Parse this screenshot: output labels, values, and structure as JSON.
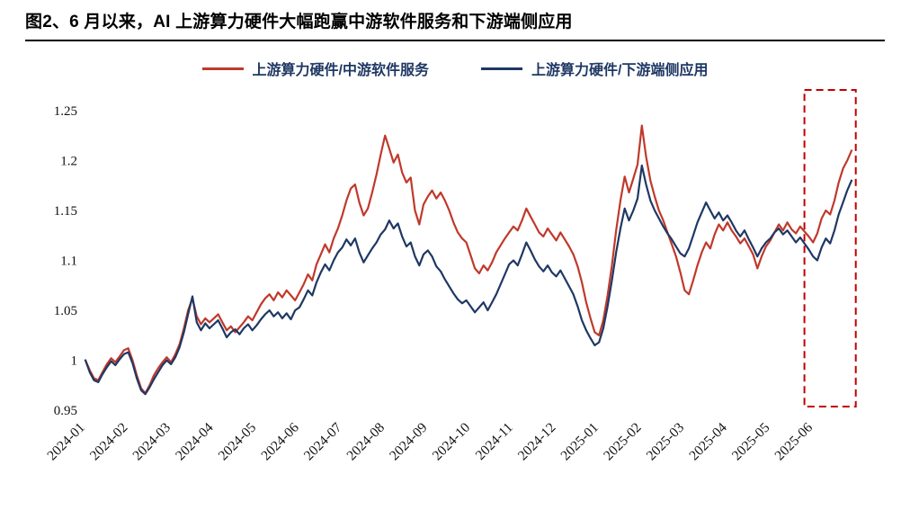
{
  "figure": {
    "title": "图2、6 月以来，AI 上游算力硬件大幅跑赢中游软件服务和下游端侧应用"
  },
  "colors": {
    "legend_text": "#1F3864",
    "title_rule": "#000000",
    "highlight_box": "#C00000"
  },
  "chart_data": {
    "type": "line",
    "title": "图2、6 月以来，AI 上游算力硬件大幅跑赢中游软件服务和下游端侧应用",
    "x_labels": [
      "2024-01",
      "2024-02",
      "2024-03",
      "2024-04",
      "2024-05",
      "2024-06",
      "2024-07",
      "2024-08",
      "2024-09",
      "2024-10",
      "2024-11",
      "2024-12",
      "2025-01",
      "2025-02",
      "2025-03",
      "2025-04",
      "2025-05",
      "2025-06"
    ],
    "x_span_months": 17.9,
    "ylim": [
      0.95,
      1.25
    ],
    "yticks": [
      0.95,
      1,
      1.05,
      1.1,
      1.15,
      1.2,
      1.25
    ],
    "grid": false,
    "legend_position": "top-center",
    "highlight_box": {
      "from_month": 16.8,
      "to_month": 18.0,
      "color": "#C00000",
      "style": "dashed",
      "covers": "2025-06至图末区间"
    },
    "series": [
      {
        "name": "上游算力硬件/中游软件服务",
        "color": "#C0392B",
        "values": [
          1.0,
          0.99,
          0.982,
          0.98,
          0.988,
          0.996,
          1.002,
          0.998,
          1.004,
          1.01,
          1.012,
          1.0,
          0.985,
          0.972,
          0.967,
          0.975,
          0.985,
          0.992,
          0.998,
          1.003,
          0.998,
          1.006,
          1.016,
          1.032,
          1.05,
          1.062,
          1.044,
          1.036,
          1.042,
          1.038,
          1.042,
          1.046,
          1.038,
          1.03,
          1.034,
          1.028,
          1.033,
          1.038,
          1.044,
          1.04,
          1.048,
          1.056,
          1.062,
          1.066,
          1.06,
          1.068,
          1.063,
          1.07,
          1.065,
          1.06,
          1.068,
          1.076,
          1.086,
          1.08,
          1.096,
          1.106,
          1.116,
          1.108,
          1.122,
          1.132,
          1.145,
          1.16,
          1.172,
          1.176,
          1.158,
          1.145,
          1.152,
          1.168,
          1.186,
          1.206,
          1.225,
          1.212,
          1.198,
          1.206,
          1.188,
          1.178,
          1.183,
          1.15,
          1.136,
          1.156,
          1.164,
          1.17,
          1.162,
          1.168,
          1.16,
          1.15,
          1.138,
          1.128,
          1.122,
          1.118,
          1.105,
          1.092,
          1.087,
          1.095,
          1.09,
          1.098,
          1.108,
          1.115,
          1.122,
          1.128,
          1.134,
          1.13,
          1.14,
          1.152,
          1.144,
          1.136,
          1.128,
          1.124,
          1.132,
          1.126,
          1.12,
          1.128,
          1.121,
          1.114,
          1.106,
          1.094,
          1.078,
          1.058,
          1.042,
          1.028,
          1.025,
          1.04,
          1.065,
          1.095,
          1.13,
          1.16,
          1.184,
          1.168,
          1.182,
          1.196,
          1.235,
          1.204,
          1.18,
          1.164,
          1.15,
          1.14,
          1.128,
          1.116,
          1.104,
          1.088,
          1.07,
          1.066,
          1.08,
          1.095,
          1.108,
          1.118,
          1.112,
          1.126,
          1.136,
          1.13,
          1.138,
          1.13,
          1.124,
          1.117,
          1.122,
          1.114,
          1.106,
          1.092,
          1.104,
          1.114,
          1.12,
          1.128,
          1.136,
          1.13,
          1.138,
          1.131,
          1.127,
          1.134,
          1.129,
          1.124,
          1.118,
          1.127,
          1.142,
          1.15,
          1.146,
          1.16,
          1.178,
          1.192,
          1.2,
          1.21
        ]
      },
      {
        "name": "上游算力硬件/下游端侧应用",
        "color": "#1F3864",
        "values": [
          1.0,
          0.988,
          0.98,
          0.978,
          0.986,
          0.993,
          0.999,
          0.995,
          1.001,
          1.006,
          1.008,
          0.997,
          0.982,
          0.97,
          0.966,
          0.973,
          0.981,
          0.988,
          0.995,
          1.0,
          0.996,
          1.003,
          1.013,
          1.028,
          1.046,
          1.064,
          1.038,
          1.03,
          1.037,
          1.032,
          1.036,
          1.04,
          1.032,
          1.023,
          1.028,
          1.031,
          1.026,
          1.032,
          1.036,
          1.03,
          1.035,
          1.041,
          1.046,
          1.05,
          1.044,
          1.048,
          1.042,
          1.047,
          1.041,
          1.05,
          1.053,
          1.061,
          1.07,
          1.065,
          1.078,
          1.088,
          1.096,
          1.09,
          1.1,
          1.108,
          1.113,
          1.121,
          1.115,
          1.122,
          1.108,
          1.098,
          1.105,
          1.112,
          1.118,
          1.126,
          1.131,
          1.14,
          1.132,
          1.137,
          1.124,
          1.114,
          1.118,
          1.104,
          1.095,
          1.106,
          1.11,
          1.104,
          1.094,
          1.089,
          1.081,
          1.074,
          1.067,
          1.061,
          1.057,
          1.06,
          1.054,
          1.048,
          1.053,
          1.058,
          1.05,
          1.058,
          1.066,
          1.076,
          1.086,
          1.096,
          1.1,
          1.095,
          1.106,
          1.118,
          1.11,
          1.101,
          1.094,
          1.089,
          1.095,
          1.088,
          1.084,
          1.09,
          1.082,
          1.074,
          1.066,
          1.054,
          1.04,
          1.03,
          1.022,
          1.015,
          1.018,
          1.032,
          1.054,
          1.08,
          1.108,
          1.132,
          1.152,
          1.14,
          1.15,
          1.162,
          1.195,
          1.176,
          1.16,
          1.15,
          1.142,
          1.134,
          1.127,
          1.121,
          1.114,
          1.107,
          1.104,
          1.112,
          1.125,
          1.138,
          1.148,
          1.158,
          1.15,
          1.142,
          1.148,
          1.14,
          1.145,
          1.138,
          1.13,
          1.124,
          1.13,
          1.121,
          1.113,
          1.104,
          1.112,
          1.118,
          1.122,
          1.128,
          1.132,
          1.126,
          1.13,
          1.124,
          1.118,
          1.123,
          1.117,
          1.111,
          1.104,
          1.1,
          1.113,
          1.122,
          1.117,
          1.13,
          1.146,
          1.158,
          1.17,
          1.18
        ]
      }
    ]
  }
}
